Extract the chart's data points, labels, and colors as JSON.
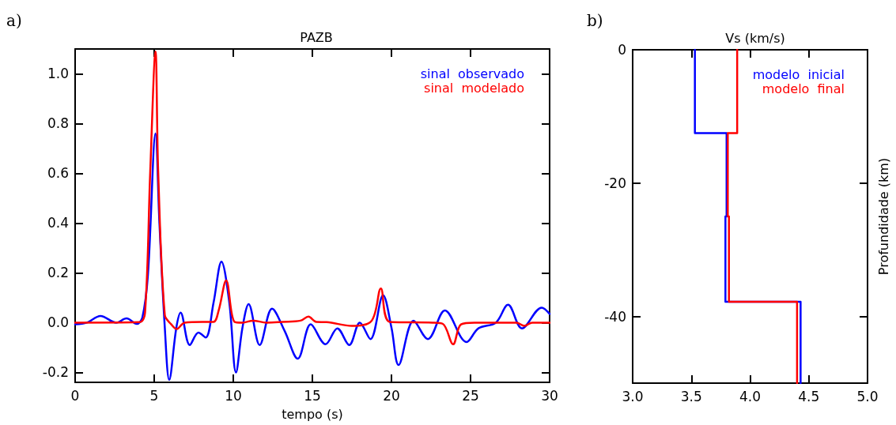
{
  "chart_data": [
    {
      "type": "line",
      "title": "PAZB",
      "xlabel": "tempo (s)",
      "annotations": [
        "a)"
      ],
      "legend": "top right",
      "grid": false,
      "marker": "none",
      "line_style": "solid",
      "xlim": [
        0,
        30
      ],
      "xticks": [
        0,
        5,
        10,
        15,
        20,
        25,
        30
      ],
      "ylim": [
        -0.24,
        1.1
      ],
      "yticks": [
        {
          "value": -0.2,
          "label": "-0.2"
        },
        {
          "value": 0,
          "label": "0.0"
        },
        {
          "value": 0.2,
          "label": "0.2"
        },
        {
          "value": 0.4,
          "label": "0.4"
        },
        {
          "value": 0.6,
          "label": "0.6"
        },
        {
          "value": 0.8,
          "label": "0.8"
        },
        {
          "value": 1.0,
          "label": "1.0"
        }
      ],
      "series": [
        {
          "name": "sinal  observado",
          "color": "#0000ff",
          "x": [
            0,
            0.75,
            1.6,
            2.6,
            3.25,
            3.9,
            4.25,
            4.6,
            5.08,
            5.33,
            5.67,
            5.95,
            6.4,
            6.67,
            7.25,
            7.8,
            8.25,
            8.75,
            9.25,
            9.75,
            10.17,
            10.58,
            10.97,
            11.67,
            12.45,
            13.25,
            14.08,
            14.9,
            15.83,
            16.58,
            17.33,
            18.0,
            18.67,
            19.47,
            20.0,
            20.45,
            21.4,
            22.3,
            23.38,
            24.75,
            25.5,
            26.6,
            27.37,
            28.25,
            29.5,
            30
          ],
          "values": [
            -0.007,
            0,
            0.027,
            0,
            0.017,
            -0.005,
            0.02,
            0.19,
            0.76,
            0.4,
            -0.02,
            -0.23,
            -0.02,
            0.04,
            -0.09,
            -0.04,
            -0.06,
            0.08,
            0.245,
            0.08,
            -0.2,
            -0.02,
            0.074,
            -0.09,
            0.056,
            -0.034,
            -0.145,
            -0.007,
            -0.087,
            -0.023,
            -0.09,
            0,
            -0.066,
            0.11,
            -0.02,
            -0.17,
            0.008,
            -0.066,
            0.049,
            -0.078,
            -0.023,
            0,
            0.072,
            -0.023,
            0.06,
            0.035
          ]
        },
        {
          "name": "sinal  modelado",
          "color": "#ff0000",
          "x": [
            0,
            4.08,
            4.42,
            4.75,
            5.08,
            5.25,
            5.67,
            6.08,
            6.42,
            6.92,
            8.08,
            8.75,
            9.08,
            9.55,
            10.08,
            10.58,
            11.25,
            12.1,
            13.1,
            14.25,
            14.75,
            15.25,
            15.9,
            17.5,
            18.75,
            19.33,
            19.9,
            22.6,
            23.25,
            23.9,
            24.4,
            25.25,
            27.9,
            28.4,
            28.9,
            30
          ],
          "values": [
            0,
            0.002,
            0.04,
            0.61,
            1.09,
            0.61,
            0.03,
            -0.007,
            -0.026,
            0,
            0.003,
            0.003,
            0.05,
            0.17,
            0.003,
            0,
            0.008,
            0,
            0.003,
            0.008,
            0.024,
            0.003,
            0.002,
            -0.013,
            0.008,
            0.137,
            0.003,
            0,
            -0.005,
            -0.087,
            -0.007,
            0,
            0,
            -0.013,
            0,
            0
          ]
        }
      ]
    },
    {
      "type": "line",
      "title": "Vs (km/s)",
      "ylabel": "Profundidade (km)",
      "annotations": [
        "b)"
      ],
      "legend": "top right",
      "grid": false,
      "marker": "none",
      "line_style": "solid",
      "xlim": [
        3.0,
        5.0
      ],
      "xticks": [
        {
          "value": 3.0,
          "label": "3.0"
        },
        {
          "value": 3.5,
          "label": "3.5"
        },
        {
          "value": 4.0,
          "label": "4.0"
        },
        {
          "value": 4.5,
          "label": "4.5"
        },
        {
          "value": 5.0,
          "label": "5.0"
        }
      ],
      "ylim": [
        -50,
        0
      ],
      "yticks": [
        0,
        -20,
        -40
      ],
      "series": [
        {
          "name": "modelo  inicial",
          "color": "#0000ff",
          "x": [
            3.53,
            3.53,
            3.8,
            3.8,
            3.79,
            3.79,
            4.43,
            4.43
          ],
          "values": [
            0,
            -12.5,
            -12.5,
            -25,
            -25,
            -37.8,
            -37.8,
            -50
          ]
        },
        {
          "name": "modelo  final",
          "color": "#ff0000",
          "x": [
            3.89,
            3.89,
            3.81,
            3.81,
            3.82,
            3.82,
            4.4,
            4.4
          ],
          "values": [
            0,
            -12.5,
            -12.5,
            -25,
            -25,
            -37.8,
            -37.8,
            -50
          ]
        }
      ]
    }
  ]
}
